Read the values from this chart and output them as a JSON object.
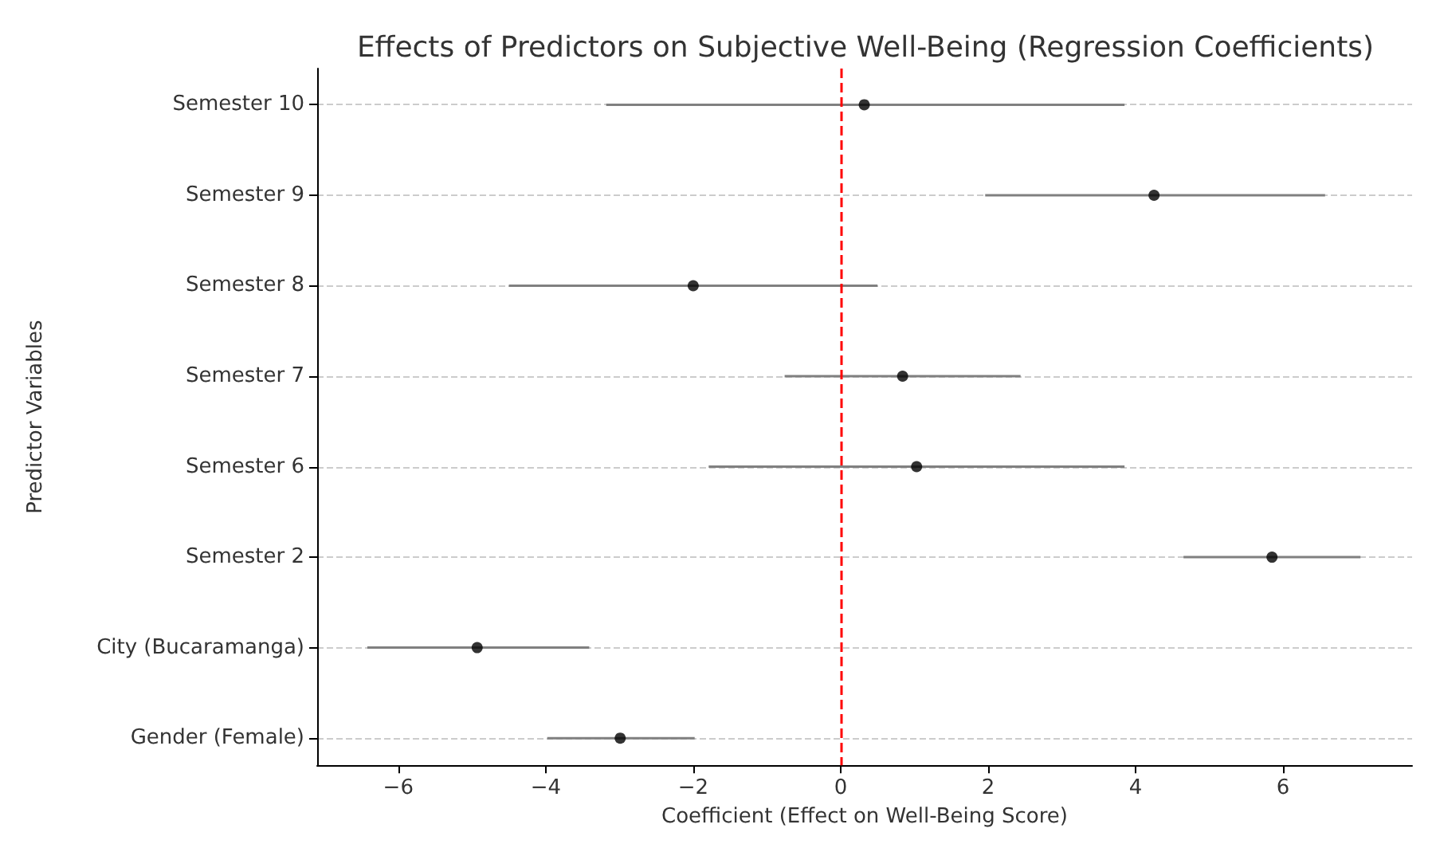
{
  "chart_data": {
    "type": "scatter",
    "orientation": "horizontal",
    "title": "Effects of Predictors on Subjective Well-Being (Regression Coefficients)",
    "xlabel": "Coefficient (Effect on Well-Being Score)",
    "ylabel": "Predictor Variables",
    "categories": [
      "Semester 10",
      "Semester 9",
      "Semester 8",
      "Semester 7",
      "Semester 6",
      "Semester 2",
      "City (Bucaramanga)",
      "Gender (Female)"
    ],
    "series": [
      {
        "color": "#000000",
        "values": [
          0.32,
          4.25,
          -2.0,
          0.84,
          1.03,
          5.85,
          -4.93,
          -2.99
        ],
        "errors": [
          [
            -3.18,
            3.85
          ],
          [
            1.96,
            6.57
          ],
          [
            -4.5,
            0.5
          ],
          [
            -0.76,
            2.44
          ],
          [
            -1.79,
            3.85
          ],
          [
            4.65,
            7.05
          ],
          [
            -6.42,
            -3.41
          ],
          [
            -3.98,
            -1.98
          ]
        ]
      }
    ],
    "xlim": [
      -7.1,
      7.75
    ],
    "xticks": [
      {
        "value": -6,
        "label": "−6"
      },
      {
        "value": -4,
        "label": "−4"
      },
      {
        "value": -2,
        "label": "−2"
      },
      0,
      2,
      4,
      6
    ],
    "ref_lines": [
      {
        "axis": "x",
        "value": 0,
        "color": "#ff0000",
        "line_style": "dashed"
      }
    ],
    "grid": "y",
    "marker": "circle"
  }
}
